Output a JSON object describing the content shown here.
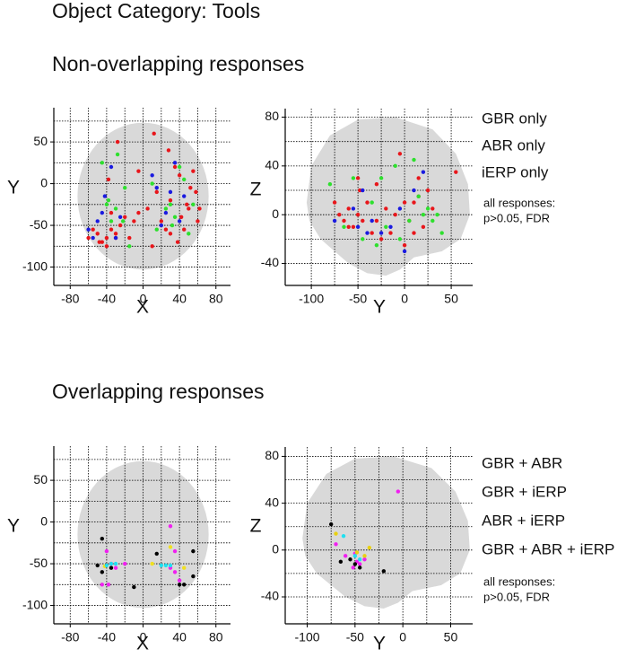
{
  "title": "Object Category: Tools",
  "headings": [
    "Non-overlapping responses",
    "Overlapping responses"
  ],
  "chart_data": [
    {
      "type": "scatter",
      "xlabel": "X",
      "ylabel": "Y",
      "xlim": [
        -98,
        96
      ],
      "ylim": [
        -122,
        91
      ],
      "xticks": [
        -80,
        -40,
        0,
        40,
        80
      ],
      "yticks": [
        50,
        0,
        -50,
        -100
      ],
      "xgrid": [
        -80,
        -60,
        -40,
        -20,
        0,
        20,
        40,
        60,
        80
      ],
      "ygrid": [
        75,
        50,
        25,
        0,
        -25,
        -50,
        -75,
        -100
      ],
      "grid": true,
      "series": [
        {
          "color": "#e8161b",
          "x": [
            -55,
            -50,
            -45,
            -40,
            -35,
            -30,
            -25,
            -20,
            -15,
            -10,
            -5,
            5,
            10,
            12,
            15,
            20,
            25,
            28,
            30,
            35,
            40,
            42,
            45,
            50,
            55,
            58,
            60,
            62,
            -40,
            -48,
            -35,
            -28,
            -38,
            -60,
            -30,
            30,
            38,
            48,
            52,
            -5
          ],
          "y": [
            -55,
            -60,
            -70,
            -65,
            -55,
            -60,
            -50,
            -40,
            -65,
            -45,
            -35,
            -30,
            -75,
            60,
            -10,
            -45,
            -55,
            40,
            -20,
            20,
            10,
            -40,
            -55,
            -30,
            15,
            -10,
            -45,
            -30,
            -75,
            -70,
            -35,
            50,
            5,
            -65,
            -65,
            -60,
            -70,
            -25,
            -5,
            15
          ]
        },
        {
          "color": "#1a1ae0",
          "x": [
            -60,
            -50,
            -45,
            -42,
            -35,
            -30,
            -25,
            10,
            15,
            20,
            25,
            35,
            40,
            45,
            -55,
            30
          ],
          "y": [
            -55,
            -45,
            -35,
            -15,
            20,
            -65,
            -40,
            10,
            -5,
            -50,
            -35,
            25,
            -45,
            -15,
            -65,
            -10
          ]
        },
        {
          "color": "#2ee02e",
          "x": [
            -45,
            -40,
            -35,
            -30,
            -28,
            -22,
            -20,
            -15,
            10,
            15,
            25,
            30,
            32,
            40,
            45,
            50,
            55,
            35,
            -38
          ],
          "y": [
            25,
            -25,
            -45,
            -30,
            35,
            -45,
            -5,
            -75,
            0,
            -55,
            -30,
            -25,
            -50,
            20,
            5,
            -60,
            -25,
            -40,
            -20
          ]
        }
      ]
    },
    {
      "type": "scatter",
      "xlabel": "Y",
      "ylabel": "Z",
      "xlim": [
        -128,
        73
      ],
      "ylim": [
        -58,
        87
      ],
      "xticks": [
        -100,
        -50,
        0,
        50
      ],
      "yticks": [
        80,
        40,
        0,
        -40
      ],
      "xgrid": [
        -100,
        -75,
        -50,
        -25,
        0,
        25,
        50
      ],
      "ygrid": [
        80,
        60,
        40,
        20,
        0,
        -20,
        -40
      ],
      "grid": true,
      "annotation": [
        "all responses:",
        "p>0.05, FDR"
      ],
      "series": [
        {
          "name": "GBR only",
          "color": "#e8161b",
          "x": [
            -75,
            -70,
            -65,
            -60,
            -55,
            -50,
            -48,
            -45,
            -40,
            -35,
            -30,
            -25,
            -20,
            -15,
            -10,
            0,
            5,
            10,
            15,
            20,
            25,
            30,
            55,
            -5,
            15,
            -50,
            -30,
            -60,
            0,
            10
          ],
          "y": [
            10,
            0,
            -5,
            5,
            -10,
            0,
            20,
            -5,
            10,
            -15,
            -5,
            -20,
            5,
            -15,
            0,
            -25,
            -5,
            10,
            15,
            -10,
            20,
            5,
            35,
            50,
            30,
            30,
            25,
            -10,
            10,
            -15
          ]
        },
        {
          "name": "ABR only",
          "color": "#1a1ae0",
          "x": [
            -75,
            -55,
            -45,
            -50,
            -35,
            -25,
            -15,
            0,
            10,
            20,
            -40,
            -5
          ],
          "y": [
            -5,
            5,
            20,
            -10,
            -5,
            -15,
            -10,
            -30,
            20,
            35,
            -15,
            5
          ]
        },
        {
          "name": "iERP only",
          "color": "#2ee02e",
          "x": [
            -80,
            -65,
            -55,
            -45,
            -35,
            -30,
            -20,
            -10,
            5,
            10,
            15,
            20,
            30,
            35,
            40,
            25,
            -5,
            -25
          ],
          "y": [
            25,
            -10,
            30,
            -20,
            10,
            -25,
            -10,
            40,
            -5,
            45,
            15,
            0,
            -5,
            0,
            -15,
            5,
            -20,
            30
          ]
        }
      ]
    },
    {
      "type": "scatter",
      "xlabel": "X",
      "ylabel": "Y",
      "xlim": [
        -98,
        96
      ],
      "ylim": [
        -122,
        91
      ],
      "xticks": [
        -80,
        -40,
        0,
        40,
        80
      ],
      "yticks": [
        50,
        0,
        -50,
        -100
      ],
      "xgrid": [
        -80,
        -60,
        -40,
        -20,
        0,
        20,
        40,
        60,
        80
      ],
      "ygrid": [
        75,
        50,
        25,
        0,
        -25,
        -50,
        -75,
        -100
      ],
      "grid": true,
      "series": [
        {
          "color": "#f020f0",
          "x": [
            -45,
            -40,
            -35,
            -30,
            -20,
            30,
            30,
            35,
            35,
            40,
            -38
          ],
          "y": [
            -75,
            -35,
            -50,
            -55,
            -50,
            -5,
            -55,
            -35,
            -60,
            -70,
            -75
          ]
        },
        {
          "color": "#000000",
          "x": [
            -50,
            -45,
            -45,
            -35,
            -10,
            15,
            40,
            45,
            55,
            55
          ],
          "y": [
            -52,
            -60,
            -20,
            -55,
            -78,
            -38,
            -75,
            -75,
            -35,
            -65
          ]
        },
        {
          "color": "#f0e020",
          "x": [
            10,
            30,
            45,
            -42
          ],
          "y": [
            -50,
            -30,
            -55,
            -53
          ]
        },
        {
          "color": "#20e0f0",
          "x": [
            -40,
            -35,
            -30,
            20,
            25,
            30
          ],
          "y": [
            -52,
            -50,
            -50,
            -52,
            -52,
            -52
          ]
        }
      ]
    },
    {
      "type": "scatter",
      "xlabel": "Y",
      "ylabel": "Z",
      "xlim": [
        -123,
        73
      ],
      "ylim": [
        -63,
        88
      ],
      "xticks": [
        -100,
        -50,
        0,
        50
      ],
      "yticks": [
        80,
        40,
        0,
        -40
      ],
      "xgrid": [
        -100,
        -75,
        -50,
        -25,
        0,
        25,
        50
      ],
      "ygrid": [
        80,
        60,
        40,
        20,
        0,
        -20,
        -40
      ],
      "grid": true,
      "annotation": [
        "all responses:",
        "p>0.05, FDR"
      ],
      "series": [
        {
          "name": "GBR + ABR",
          "color": "#f020f0",
          "x": [
            -5,
            -70,
            -50,
            -48,
            -45,
            -40,
            -52,
            -60
          ],
          "y": [
            50,
            5,
            -3,
            -10,
            -12,
            -8,
            -15,
            -5
          ]
        },
        {
          "name": "GBR + iERP",
          "color": "#000000",
          "x": [
            -75,
            -55,
            -45,
            -20,
            -65,
            -50
          ],
          "y": [
            22,
            -8,
            -15,
            -18,
            -10,
            -12
          ]
        },
        {
          "name": "ABR + iERP",
          "color": "#e8d010",
          "x": [
            -70,
            -40,
            -35,
            -48
          ],
          "y": [
            14,
            -5,
            2,
            -2
          ]
        },
        {
          "name": "GBR + ABR + iERP",
          "color": "#20e0f0",
          "x": [
            -62,
            -50,
            -45
          ],
          "y": [
            12,
            -5,
            -8
          ]
        }
      ]
    }
  ]
}
